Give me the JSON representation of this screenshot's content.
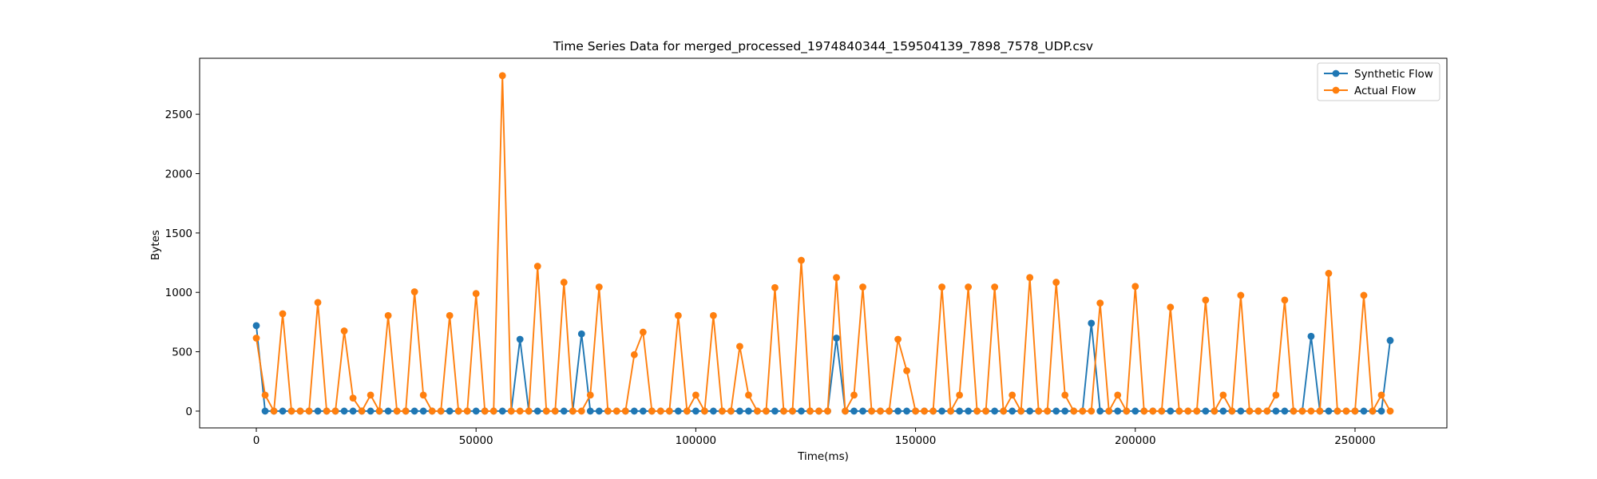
{
  "chart_data": {
    "type": "line",
    "title": "Time Series Data for merged_processed_1974840344_159504139_7898_7578_UDP.csv",
    "xlabel": "Time(ms)",
    "ylabel": "Bytes",
    "xlim": [
      -12900,
      270900
    ],
    "ylim": [
      -141.5,
      2971.5
    ],
    "xticks": [
      0,
      50000,
      100000,
      150000,
      200000,
      250000
    ],
    "yticks": [
      0,
      500,
      1000,
      1500,
      2000,
      2500
    ],
    "grid": false,
    "legend_position": "top-right",
    "x": [
      0,
      2000,
      4000,
      6000,
      8000,
      10000,
      12000,
      14000,
      16000,
      18000,
      20000,
      22000,
      24000,
      26000,
      28000,
      30000,
      32000,
      34000,
      36000,
      38000,
      40000,
      42000,
      44000,
      46000,
      48000,
      50000,
      52000,
      54000,
      56000,
      58000,
      60000,
      62000,
      64000,
      66000,
      68000,
      70000,
      72000,
      74000,
      76000,
      78000,
      80000,
      82000,
      84000,
      86000,
      88000,
      90000,
      92000,
      94000,
      96000,
      98000,
      100000,
      102000,
      104000,
      106000,
      108000,
      110000,
      112000,
      114000,
      116000,
      118000,
      120000,
      122000,
      124000,
      126000,
      128000,
      130000,
      132000,
      134000,
      136000,
      138000,
      140000,
      142000,
      144000,
      146000,
      148000,
      150000,
      152000,
      154000,
      156000,
      158000,
      160000,
      162000,
      164000,
      166000,
      168000,
      170000,
      172000,
      174000,
      176000,
      178000,
      180000,
      182000,
      184000,
      186000,
      188000,
      190000,
      192000,
      194000,
      196000,
      198000,
      200000,
      202000,
      204000,
      206000,
      208000,
      210000,
      212000,
      214000,
      216000,
      218000,
      220000,
      222000,
      224000,
      226000,
      228000,
      230000,
      232000,
      234000,
      236000,
      238000,
      240000,
      242000,
      244000,
      246000,
      248000,
      250000,
      252000,
      254000,
      256000,
      258000
    ],
    "series": [
      {
        "name": "Synthetic Flow",
        "color": "#1f77b4",
        "values": [
          720,
          0,
          0,
          0,
          0,
          0,
          0,
          0,
          0,
          0,
          0,
          0,
          0,
          0,
          0,
          0,
          0,
          0,
          0,
          0,
          0,
          0,
          0,
          0,
          0,
          0,
          0,
          0,
          0,
          0,
          605,
          0,
          0,
          0,
          0,
          0,
          0,
          650,
          0,
          0,
          0,
          0,
          0,
          0,
          0,
          0,
          0,
          0,
          0,
          0,
          0,
          0,
          0,
          0,
          0,
          0,
          0,
          0,
          0,
          0,
          0,
          0,
          0,
          0,
          0,
          0,
          615,
          0,
          0,
          0,
          0,
          0,
          0,
          0,
          0,
          0,
          0,
          0,
          0,
          0,
          0,
          0,
          0,
          0,
          0,
          0,
          0,
          0,
          0,
          0,
          0,
          0,
          0,
          0,
          0,
          740,
          0,
          0,
          0,
          0,
          0,
          0,
          0,
          0,
          0,
          0,
          0,
          0,
          0,
          0,
          0,
          0,
          0,
          0,
          0,
          0,
          0,
          0,
          0,
          0,
          630,
          0,
          0,
          0,
          0,
          0,
          0,
          0,
          0,
          595
        ]
      },
      {
        "name": "Actual Flow",
        "color": "#ff7f0e",
        "values": [
          615,
          135,
          0,
          820,
          0,
          0,
          0,
          915,
          0,
          0,
          675,
          110,
          0,
          135,
          0,
          805,
          0,
          0,
          1005,
          135,
          0,
          0,
          805,
          0,
          0,
          990,
          0,
          0,
          2825,
          0,
          0,
          0,
          1220,
          0,
          0,
          1085,
          0,
          0,
          135,
          1045,
          0,
          0,
          0,
          475,
          665,
          0,
          0,
          0,
          805,
          0,
          135,
          0,
          805,
          0,
          0,
          545,
          135,
          0,
          0,
          1040,
          0,
          0,
          1270,
          0,
          0,
          0,
          1125,
          0,
          135,
          1045,
          0,
          0,
          0,
          605,
          340,
          0,
          0,
          0,
          1045,
          0,
          135,
          1045,
          0,
          0,
          1045,
          0,
          135,
          0,
          1125,
          0,
          0,
          1085,
          135,
          0,
          0,
          0,
          910,
          0,
          135,
          0,
          1050,
          0,
          0,
          0,
          875,
          0,
          0,
          0,
          935,
          0,
          135,
          0,
          975,
          0,
          0,
          0,
          135,
          935,
          0,
          0,
          0,
          0,
          1160,
          0,
          0,
          0,
          975,
          0,
          135,
          0
        ]
      }
    ]
  }
}
